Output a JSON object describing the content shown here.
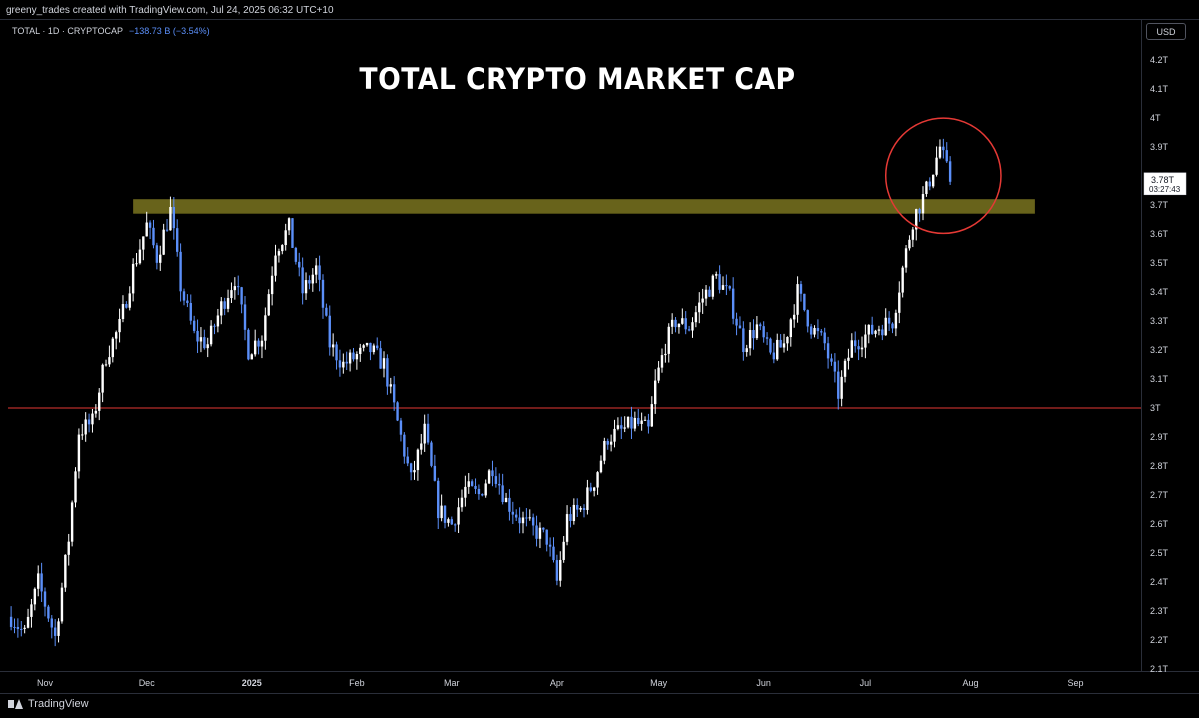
{
  "header": {
    "credit": "greeny_trades created with TradingView.com, Jul 24, 2025 06:32 UTC+10",
    "symbol": "TOTAL · 1D · CRYPTOCAP",
    "change": "−138.73 B (−3.54%)",
    "currency": "USD"
  },
  "footer": {
    "brand": "TradingView"
  },
  "colors": {
    "background": "#000000",
    "candle_up": "#ffffff",
    "candle_down": "#5b8ff9",
    "support_line": "#e53935",
    "resistance_zone": "#7a7420",
    "highlight_circle": "#e53935"
  },
  "chart_data": {
    "type": "candlestick",
    "title": "TOTAL CRYPTO MARKET CAP",
    "ylabel": "",
    "unit": "T",
    "ylim": [
      2.1,
      4.25
    ],
    "yticks": [
      "4.2T",
      "4.1T",
      "4T",
      "3.9T",
      "3.8T",
      "3.7T",
      "3.6T",
      "3.5T",
      "3.4T",
      "3.3T",
      "3.2T",
      "3.1T",
      "3T",
      "2.9T",
      "2.8T",
      "2.7T",
      "2.6T",
      "2.5T",
      "2.4T",
      "2.3T",
      "2.2T",
      "2.1T"
    ],
    "xticks": [
      {
        "label": "Nov",
        "day": 0,
        "bold": false
      },
      {
        "label": "Dec",
        "day": 30,
        "bold": false
      },
      {
        "label": "2025",
        "day": 61,
        "bold": true
      },
      {
        "label": "Feb",
        "day": 92,
        "bold": false
      },
      {
        "label": "Mar",
        "day": 120,
        "bold": false
      },
      {
        "label": "Apr",
        "day": 151,
        "bold": false
      },
      {
        "label": "May",
        "day": 181,
        "bold": false
      },
      {
        "label": "Jun",
        "day": 212,
        "bold": false
      },
      {
        "label": "Jul",
        "day": 242,
        "bold": false
      },
      {
        "label": "Aug",
        "day": 273,
        "bold": false
      },
      {
        "label": "Sep",
        "day": 304,
        "bold": false
      }
    ],
    "last_price": {
      "label": "3.78T",
      "countdown": "03:27:43",
      "value": 3.78
    },
    "annotations": {
      "support_line": {
        "value": 3.0
      },
      "resistance_zone": {
        "low": 3.67,
        "high": 3.72,
        "from_day": 26,
        "to_day": 292
      },
      "highlight_circle": {
        "center_day": 265,
        "center_value": 3.78,
        "radius_days": 17
      }
    },
    "close_path": [
      [
        -10,
        2.28
      ],
      [
        -6,
        2.22
      ],
      [
        -2,
        2.4
      ],
      [
        3,
        2.21
      ],
      [
        7,
        2.55
      ],
      [
        10,
        2.92
      ],
      [
        14,
        2.95
      ],
      [
        18,
        3.18
      ],
      [
        22,
        3.28
      ],
      [
        26,
        3.48
      ],
      [
        30,
        3.63
      ],
      [
        33,
        3.52
      ],
      [
        37,
        3.68
      ],
      [
        40,
        3.42
      ],
      [
        44,
        3.25
      ],
      [
        48,
        3.22
      ],
      [
        52,
        3.35
      ],
      [
        56,
        3.45
      ],
      [
        60,
        3.2
      ],
      [
        64,
        3.25
      ],
      [
        68,
        3.55
      ],
      [
        72,
        3.62
      ],
      [
        76,
        3.4
      ],
      [
        80,
        3.48
      ],
      [
        84,
        3.22
      ],
      [
        88,
        3.15
      ],
      [
        92,
        3.18
      ],
      [
        96,
        3.2
      ],
      [
        100,
        3.15
      ],
      [
        104,
        2.95
      ],
      [
        108,
        2.75
      ],
      [
        112,
        2.92
      ],
      [
        116,
        2.65
      ],
      [
        120,
        2.6
      ],
      [
        124,
        2.72
      ],
      [
        128,
        2.7
      ],
      [
        132,
        2.8
      ],
      [
        136,
        2.68
      ],
      [
        140,
        2.62
      ],
      [
        144,
        2.58
      ],
      [
        148,
        2.55
      ],
      [
        151,
        2.4
      ],
      [
        154,
        2.62
      ],
      [
        158,
        2.65
      ],
      [
        162,
        2.75
      ],
      [
        166,
        2.9
      ],
      [
        170,
        2.92
      ],
      [
        174,
        2.95
      ],
      [
        178,
        2.92
      ],
      [
        180,
        3.08
      ],
      [
        183,
        3.22
      ],
      [
        186,
        3.3
      ],
      [
        190,
        3.28
      ],
      [
        194,
        3.38
      ],
      [
        198,
        3.45
      ],
      [
        202,
        3.38
      ],
      [
        206,
        3.22
      ],
      [
        210,
        3.28
      ],
      [
        214,
        3.18
      ],
      [
        218,
        3.22
      ],
      [
        222,
        3.4
      ],
      [
        226,
        3.28
      ],
      [
        230,
        3.22
      ],
      [
        234,
        3.05
      ],
      [
        238,
        3.22
      ],
      [
        242,
        3.25
      ],
      [
        246,
        3.28
      ],
      [
        250,
        3.3
      ],
      [
        253,
        3.48
      ],
      [
        256,
        3.65
      ],
      [
        260,
        3.75
      ],
      [
        264,
        3.9
      ],
      [
        267,
        3.78
      ]
    ]
  }
}
